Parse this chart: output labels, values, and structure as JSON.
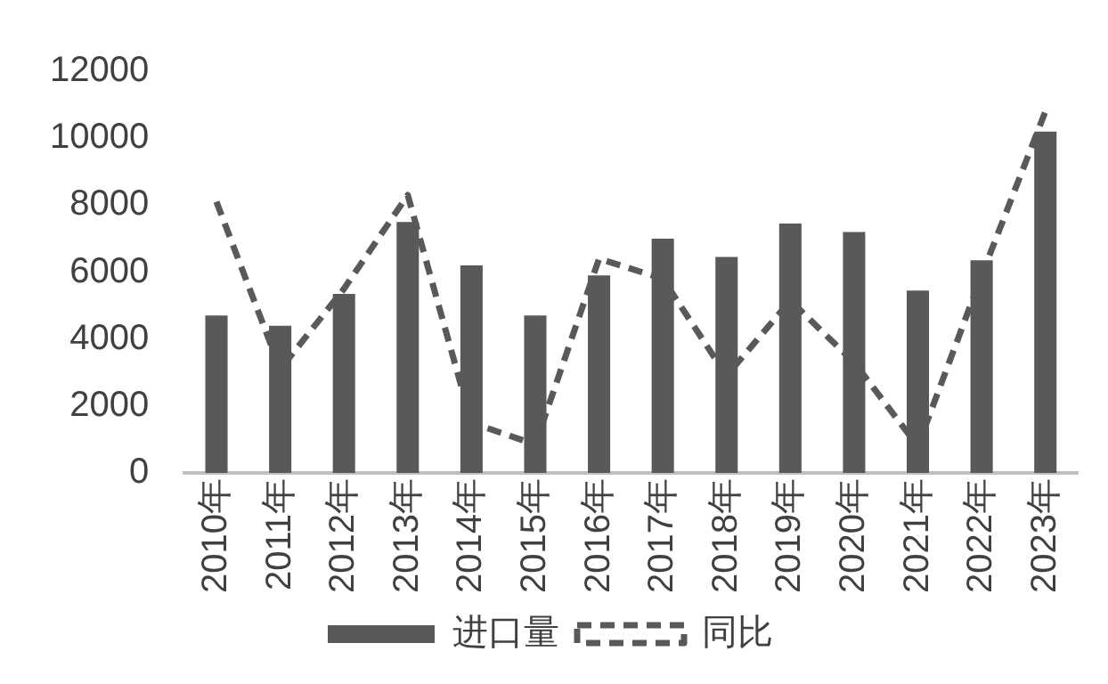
{
  "chart_data": {
    "type": "bar",
    "categories": [
      "2010年",
      "2011年",
      "2012年",
      "2013年",
      "2014年",
      "2015年",
      "2016年",
      "2017年",
      "2018年",
      "2019年",
      "2020年",
      "2021年",
      "2022年",
      "2023年"
    ],
    "series": [
      {
        "name": "进口量",
        "color": "#595959",
        "values": [
          4700,
          4400,
          5350,
          7500,
          6200,
          4700,
          5900,
          7000,
          6450,
          7450,
          7200,
          5450,
          6350,
          10200
        ]
      },
      {
        "name": "同比",
        "type": "line",
        "line_style": "dashed",
        "marker": "none",
        "color": "#595959",
        "values": [
          8100,
          3100,
          5500,
          8300,
          1500,
          850,
          6400,
          5800,
          2900,
          5150,
          3300,
          800,
          5900,
          10800
        ]
      }
    ],
    "ylim": [
      0,
      12000
    ],
    "yticks": [
      0,
      2000,
      4000,
      6000,
      8000,
      10000,
      12000
    ],
    "grid": false,
    "legend": "bottom"
  }
}
